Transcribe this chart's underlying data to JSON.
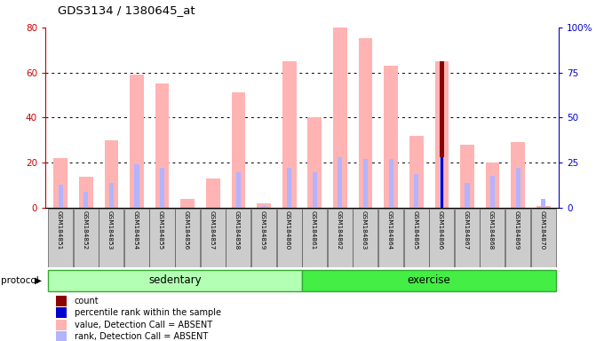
{
  "title": "GDS3134 / 1380645_at",
  "samples": [
    "GSM184851",
    "GSM184852",
    "GSM184853",
    "GSM184854",
    "GSM184855",
    "GSM184856",
    "GSM184857",
    "GSM184858",
    "GSM184859",
    "GSM184860",
    "GSM184861",
    "GSM184862",
    "GSM184863",
    "GSM184864",
    "GSM184865",
    "GSM184866",
    "GSM184867",
    "GSM184868",
    "GSM184869",
    "GSM184870"
  ],
  "value_absent": [
    22,
    14,
    30,
    59,
    55,
    4,
    13,
    51,
    2,
    65,
    40,
    80,
    75,
    63,
    32,
    65,
    28,
    20,
    29,
    1
  ],
  "rank_absent": [
    13,
    9,
    14,
    24,
    22,
    0,
    0,
    20,
    1,
    22,
    20,
    28,
    27,
    27,
    19,
    28,
    14,
    18,
    22,
    5
  ],
  "count": [
    0,
    0,
    0,
    0,
    0,
    0,
    0,
    0,
    0,
    0,
    0,
    0,
    0,
    0,
    0,
    65,
    0,
    0,
    0,
    0
  ],
  "pct_rank": [
    0,
    0,
    0,
    0,
    0,
    0,
    0,
    0,
    0,
    0,
    0,
    0,
    0,
    0,
    0,
    28,
    0,
    0,
    0,
    0
  ],
  "color_value_absent": "#ffb3b3",
  "color_rank_absent": "#b3b3ff",
  "color_count": "#8b0000",
  "color_pct_rank": "#0000cc",
  "protocol_bg_light": "#b3ffb3",
  "protocol_bg_dark": "#44ee44",
  "ylim_left": [
    0,
    80
  ],
  "ylim_right": [
    0,
    100
  ],
  "yticks_left": [
    0,
    20,
    40,
    60,
    80
  ],
  "yticks_right": [
    0,
    25,
    50,
    75,
    100
  ],
  "ylabel_left_color": "#cc0000",
  "ylabel_right_color": "#0000cc",
  "legend_items": [
    {
      "label": "count",
      "color": "#8b0000"
    },
    {
      "label": "percentile rank within the sample",
      "color": "#0000cc"
    },
    {
      "label": "value, Detection Call = ABSENT",
      "color": "#ffb3b3"
    },
    {
      "label": "rank, Detection Call = ABSENT",
      "color": "#b3b3ff"
    }
  ]
}
